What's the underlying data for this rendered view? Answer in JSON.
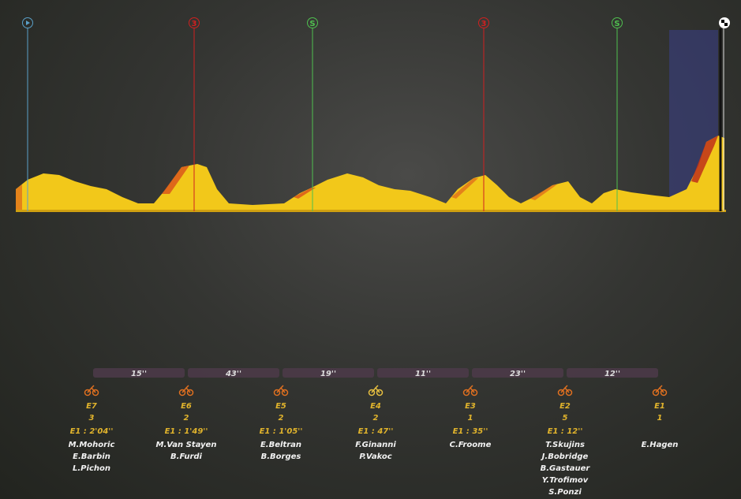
{
  "profile": {
    "markers": [
      "3",
      "S",
      "3",
      "S"
    ]
  },
  "gaps": [
    "15''",
    "43''",
    "19''",
    "11''",
    "23''",
    "12''"
  ],
  "groups": [
    {
      "name": "E7",
      "size": 3,
      "gap": "E1 : 2'04''",
      "riders": [
        "M.Mohoric",
        "E.Barbin",
        "L.Pichon"
      ]
    },
    {
      "name": "E6",
      "size": 2,
      "gap": "E1 : 1'49''",
      "riders": [
        "M.Van Stayen",
        "B.Furdi"
      ]
    },
    {
      "name": "E5",
      "size": 2,
      "gap": "E1 : 1'05''",
      "riders": [
        "E.Beltran",
        "B.Borges"
      ]
    },
    {
      "name": "E4",
      "size": 2,
      "gap": "E1 : 47''",
      "riders": [
        "F.Ginanni",
        "P.Vakoc"
      ]
    },
    {
      "name": "E3",
      "size": 1,
      "gap": "E1 : 35''",
      "riders": [
        "C.Froome"
      ]
    },
    {
      "name": "E2",
      "size": 5,
      "gap": "E1 : 12''",
      "riders": [
        "T.Skujins",
        "J.Bobridge",
        "B.Gastauer",
        "Y.Trofimov",
        "S.Ponzi"
      ]
    },
    {
      "name": "E1",
      "size": 1,
      "riders": [
        "E.Hagen"
      ]
    }
  ]
}
